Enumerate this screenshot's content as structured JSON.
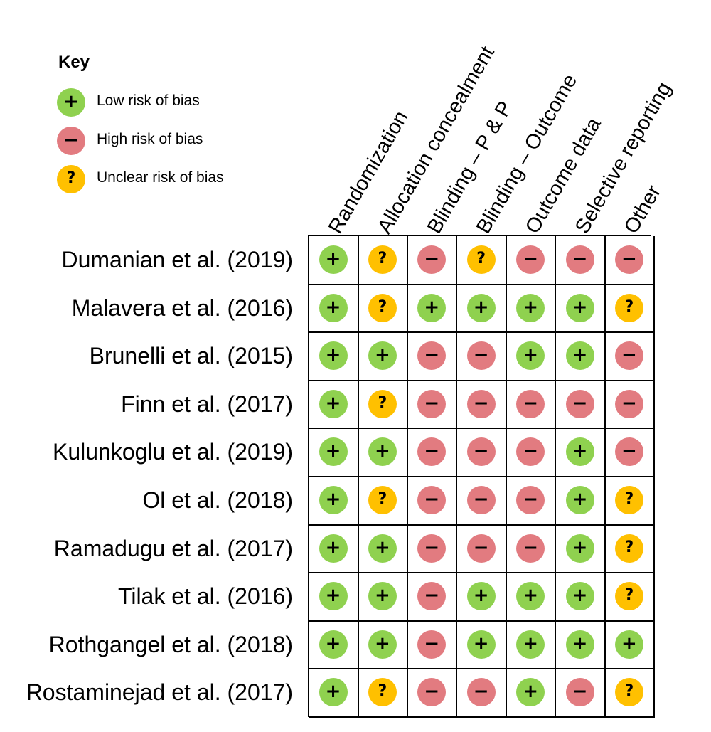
{
  "key": {
    "title": "Key",
    "items": [
      {
        "rating": "low",
        "label": "Low risk of bias"
      },
      {
        "rating": "high",
        "label": "High risk of bias"
      },
      {
        "rating": "unclear",
        "label": "Unclear risk of bias"
      }
    ]
  },
  "symbols": {
    "low": {
      "glyph": "+",
      "color": "#8fd14f",
      "icon": "plus-icon"
    },
    "high": {
      "glyph": "−",
      "color": "#e27b80",
      "icon": "minus-icon"
    },
    "unclear": {
      "glyph": "?",
      "color": "#ffc000",
      "icon": "question-icon"
    }
  },
  "columns": [
    "Randomization",
    "Allocation concealment",
    "Blinding – P & P",
    "Blinding – Outcome",
    "Outcome data",
    "Selective reporting",
    "Other"
  ],
  "studies": [
    {
      "label": "Dumanian et al. (2019)",
      "ratings": [
        "low",
        "unclear",
        "high",
        "unclear",
        "high",
        "high",
        "high"
      ]
    },
    {
      "label": "Malavera et al. (2016)",
      "ratings": [
        "low",
        "unclear",
        "low",
        "low",
        "low",
        "low",
        "unclear"
      ]
    },
    {
      "label": "Brunelli et al. (2015)",
      "ratings": [
        "low",
        "low",
        "high",
        "high",
        "low",
        "low",
        "high"
      ]
    },
    {
      "label": "Finn et al. (2017)",
      "ratings": [
        "low",
        "unclear",
        "high",
        "high",
        "high",
        "high",
        "high"
      ]
    },
    {
      "label": "Kulunkoglu et al. (2019)",
      "ratings": [
        "low",
        "low",
        "high",
        "high",
        "high",
        "low",
        "high"
      ]
    },
    {
      "label": "Ol et al. (2018)",
      "ratings": [
        "low",
        "unclear",
        "high",
        "high",
        "high",
        "low",
        "unclear"
      ]
    },
    {
      "label": "Ramadugu et al. (2017)",
      "ratings": [
        "low",
        "low",
        "high",
        "high",
        "high",
        "low",
        "unclear"
      ]
    },
    {
      "label": "Tilak et al. (2016)",
      "ratings": [
        "low",
        "low",
        "high",
        "low",
        "low",
        "low",
        "unclear"
      ]
    },
    {
      "label": "Rothgangel et al. (2018)",
      "ratings": [
        "low",
        "low",
        "high",
        "low",
        "low",
        "low",
        "low"
      ]
    },
    {
      "label": "Rostaminejad et al. (2017)",
      "ratings": [
        "low",
        "unclear",
        "high",
        "high",
        "low",
        "high",
        "unclear"
      ]
    }
  ]
}
